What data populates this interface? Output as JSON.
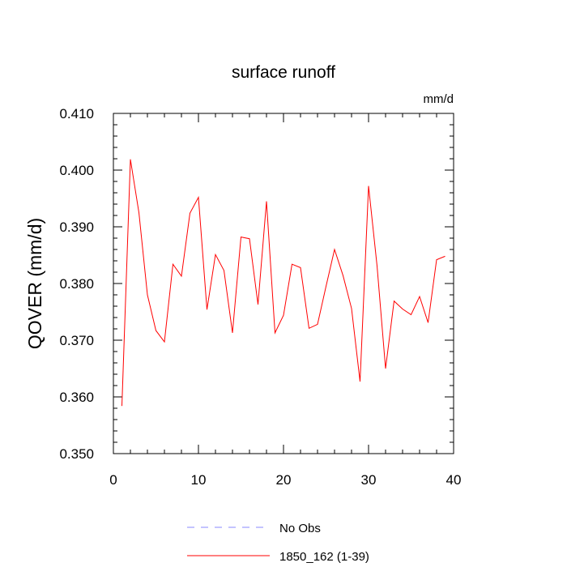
{
  "chart_data": {
    "type": "line",
    "title": "surface runoff",
    "units_label": "mm/d",
    "ylabel": "QOVER  (mm/d)",
    "xlabel": "",
    "xlim": [
      0,
      40
    ],
    "ylim": [
      0.35,
      0.41
    ],
    "x_ticks": [
      "0",
      "10",
      "20",
      "30",
      "40"
    ],
    "y_ticks": [
      "0.350",
      "0.360",
      "0.370",
      "0.380",
      "0.390",
      "0.400",
      "0.410"
    ],
    "legend_position": "bottom",
    "series": [
      {
        "name": "No Obs",
        "color": "#8888ff",
        "dash": "dashed",
        "x": [],
        "values": []
      },
      {
        "name": "1850_162 (1-39)",
        "color": "#ff0000",
        "dash": "solid",
        "x": [
          1,
          2,
          3,
          4,
          5,
          6,
          7,
          8,
          9,
          10,
          11,
          12,
          13,
          14,
          15,
          16,
          17,
          18,
          19,
          20,
          21,
          22,
          23,
          24,
          25,
          26,
          27,
          28,
          29,
          30,
          31,
          32,
          33,
          34,
          35,
          36,
          37,
          38,
          39
        ],
        "values": [
          0.3584,
          0.4019,
          0.3925,
          0.378,
          0.3717,
          0.3697,
          0.3834,
          0.3813,
          0.3924,
          0.3952,
          0.3754,
          0.3851,
          0.3823,
          0.3713,
          0.3882,
          0.3879,
          0.3763,
          0.3945,
          0.3713,
          0.3744,
          0.3834,
          0.3828,
          0.3721,
          0.3728,
          0.3795,
          0.386,
          0.3814,
          0.3756,
          0.3627,
          0.3972,
          0.3831,
          0.365,
          0.3769,
          0.3755,
          0.3745,
          0.3777,
          0.3731,
          0.3842,
          0.3848
        ]
      }
    ]
  }
}
